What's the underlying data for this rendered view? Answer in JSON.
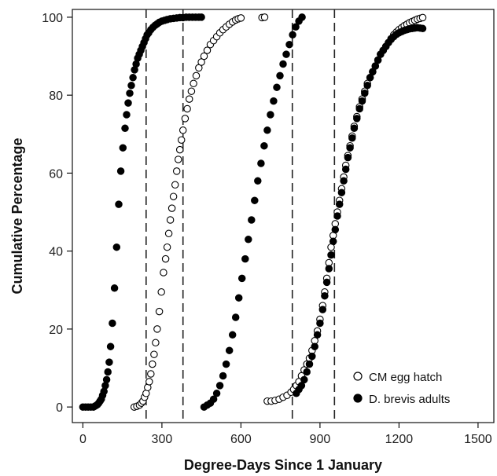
{
  "chart_data": {
    "type": "scatter",
    "xlabel": "Degree-Days Since 1 January",
    "ylabel": "Cumulative Percentage",
    "xlim": [
      -40,
      1560
    ],
    "ylim": [
      -4,
      102
    ],
    "xticks": [
      0,
      300,
      600,
      900,
      1200,
      1500
    ],
    "yticks": [
      0,
      20,
      40,
      60,
      80,
      100
    ],
    "grid": false,
    "legend_position": "bottom-right",
    "vlines": [
      240,
      380,
      795,
      955
    ],
    "series": [
      {
        "name": "CM egg hatch",
        "marker": "open-circle",
        "points": [
          [
            195,
            0
          ],
          [
            205,
            0.2
          ],
          [
            215,
            0.5
          ],
          [
            222,
            1
          ],
          [
            228,
            1.5
          ],
          [
            234,
            2.5
          ],
          [
            240,
            3.5
          ],
          [
            246,
            5
          ],
          [
            252,
            6.5
          ],
          [
            258,
            8.5
          ],
          [
            264,
            11
          ],
          [
            270,
            13.5
          ],
          [
            276,
            16.5
          ],
          [
            282,
            20
          ],
          [
            290,
            24.5
          ],
          [
            298,
            29.5
          ],
          [
            306,
            34.5
          ],
          [
            314,
            38
          ],
          [
            320,
            41
          ],
          [
            326,
            44.5
          ],
          [
            332,
            48
          ],
          [
            338,
            51
          ],
          [
            344,
            54
          ],
          [
            350,
            57
          ],
          [
            356,
            60.5
          ],
          [
            362,
            63.5
          ],
          [
            368,
            66
          ],
          [
            374,
            68.5
          ],
          [
            380,
            71
          ],
          [
            388,
            74
          ],
          [
            396,
            76.5
          ],
          [
            404,
            79
          ],
          [
            412,
            81
          ],
          [
            420,
            83
          ],
          [
            430,
            85
          ],
          [
            440,
            87
          ],
          [
            450,
            88.5
          ],
          [
            460,
            90
          ],
          [
            472,
            91.5
          ],
          [
            484,
            93
          ],
          [
            496,
            94
          ],
          [
            508,
            95
          ],
          [
            520,
            96
          ],
          [
            532,
            96.8
          ],
          [
            544,
            97.5
          ],
          [
            556,
            98.2
          ],
          [
            568,
            98.8
          ],
          [
            580,
            99.3
          ],
          [
            590,
            99.6
          ],
          [
            600,
            99.8
          ],
          [
            680,
            99.9
          ],
          [
            690,
            100
          ],
          [
            700,
            1.5
          ],
          [
            715,
            1.5
          ],
          [
            730,
            1.7
          ],
          [
            745,
            2
          ],
          [
            760,
            2.5
          ],
          [
            775,
            3
          ],
          [
            790,
            3.8
          ],
          [
            800,
            4.5
          ],
          [
            810,
            5.5
          ],
          [
            820,
            6.5
          ],
          [
            830,
            8
          ],
          [
            840,
            9.5
          ],
          [
            850,
            11
          ],
          [
            860,
            12.5
          ],
          [
            870,
            14.5
          ],
          [
            880,
            17
          ],
          [
            890,
            19.5
          ],
          [
            900,
            22.5
          ],
          [
            910,
            26
          ],
          [
            918,
            29.5
          ],
          [
            926,
            33
          ],
          [
            934,
            37
          ],
          [
            942,
            41
          ],
          [
            950,
            44
          ],
          [
            958,
            47
          ],
          [
            966,
            50
          ],
          [
            974,
            53
          ],
          [
            982,
            56
          ],
          [
            990,
            59
          ],
          [
            998,
            62
          ],
          [
            1006,
            64.5
          ],
          [
            1014,
            67
          ],
          [
            1022,
            69.5
          ],
          [
            1030,
            72
          ],
          [
            1040,
            74.5
          ],
          [
            1050,
            77
          ],
          [
            1060,
            79
          ],
          [
            1070,
            81
          ],
          [
            1080,
            83
          ],
          [
            1090,
            84.5
          ],
          [
            1100,
            86
          ],
          [
            1110,
            87.5
          ],
          [
            1120,
            89
          ],
          [
            1130,
            90.5
          ],
          [
            1140,
            91.5
          ],
          [
            1150,
            92.5
          ],
          [
            1160,
            93.5
          ],
          [
            1170,
            94.5
          ],
          [
            1180,
            95.5
          ],
          [
            1190,
            96.2
          ],
          [
            1200,
            96.8
          ],
          [
            1210,
            97.3
          ],
          [
            1220,
            97.8
          ],
          [
            1230,
            98.2
          ],
          [
            1240,
            98.6
          ],
          [
            1250,
            98.9
          ],
          [
            1260,
            99.2
          ],
          [
            1270,
            99.5
          ],
          [
            1280,
            99.7
          ],
          [
            1290,
            99.9
          ]
        ]
      },
      {
        "name": "D. brevis adults",
        "marker": "filled-circle",
        "points": [
          [
            0,
            0
          ],
          [
            10,
            0
          ],
          [
            20,
            0
          ],
          [
            30,
            0
          ],
          [
            40,
            0
          ],
          [
            45,
            0.2
          ],
          [
            50,
            0.4
          ],
          [
            55,
            0.6
          ],
          [
            60,
            1
          ],
          [
            65,
            1.5
          ],
          [
            70,
            2
          ],
          [
            75,
            3
          ],
          [
            80,
            4
          ],
          [
            85,
            5.5
          ],
          [
            90,
            7
          ],
          [
            95,
            9
          ],
          [
            100,
            11.5
          ],
          [
            105,
            15.5
          ],
          [
            112,
            21.5
          ],
          [
            120,
            30.5
          ],
          [
            128,
            41
          ],
          [
            136,
            52
          ],
          [
            144,
            60.5
          ],
          [
            152,
            66.5
          ],
          [
            160,
            71.5
          ],
          [
            166,
            75
          ],
          [
            172,
            78
          ],
          [
            178,
            80.5
          ],
          [
            184,
            82.5
          ],
          [
            190,
            84.5
          ],
          [
            196,
            86.5
          ],
          [
            202,
            88
          ],
          [
            208,
            89.5
          ],
          [
            214,
            90.5
          ],
          [
            220,
            91.5
          ],
          [
            226,
            92.5
          ],
          [
            232,
            93.5
          ],
          [
            238,
            94.5
          ],
          [
            244,
            95.5
          ],
          [
            250,
            96
          ],
          [
            258,
            96.8
          ],
          [
            266,
            97.4
          ],
          [
            274,
            97.9
          ],
          [
            282,
            98.3
          ],
          [
            290,
            98.7
          ],
          [
            300,
            99
          ],
          [
            310,
            99.2
          ],
          [
            320,
            99.4
          ],
          [
            332,
            99.6
          ],
          [
            344,
            99.7
          ],
          [
            356,
            99.8
          ],
          [
            368,
            99.9
          ],
          [
            380,
            99.9
          ],
          [
            392,
            100
          ],
          [
            404,
            100
          ],
          [
            416,
            100
          ],
          [
            428,
            100
          ],
          [
            440,
            100
          ],
          [
            450,
            100
          ],
          [
            460,
            0
          ],
          [
            472,
            0.5
          ],
          [
            484,
            1
          ],
          [
            496,
            2
          ],
          [
            508,
            3.5
          ],
          [
            520,
            5.5
          ],
          [
            532,
            8
          ],
          [
            544,
            11
          ],
          [
            556,
            14.5
          ],
          [
            568,
            18.5
          ],
          [
            580,
            23
          ],
          [
            592,
            28
          ],
          [
            604,
            33
          ],
          [
            616,
            38
          ],
          [
            628,
            43
          ],
          [
            640,
            48
          ],
          [
            652,
            53
          ],
          [
            664,
            58
          ],
          [
            676,
            62.5
          ],
          [
            688,
            67
          ],
          [
            700,
            71
          ],
          [
            712,
            75
          ],
          [
            724,
            78.5
          ],
          [
            736,
            82
          ],
          [
            748,
            85
          ],
          [
            760,
            88
          ],
          [
            772,
            90.5
          ],
          [
            784,
            93
          ],
          [
            796,
            95.5
          ],
          [
            808,
            97.5
          ],
          [
            820,
            99
          ],
          [
            832,
            100
          ],
          [
            810,
            3.5
          ],
          [
            820,
            4.5
          ],
          [
            830,
            5.5
          ],
          [
            840,
            7
          ],
          [
            850,
            9
          ],
          [
            860,
            11
          ],
          [
            870,
            13
          ],
          [
            880,
            15.5
          ],
          [
            890,
            18.5
          ],
          [
            900,
            21.5
          ],
          [
            910,
            25
          ],
          [
            918,
            28.5
          ],
          [
            926,
            32
          ],
          [
            934,
            35.5
          ],
          [
            942,
            39
          ],
          [
            950,
            42.5
          ],
          [
            958,
            45.5
          ],
          [
            966,
            49
          ],
          [
            974,
            52
          ],
          [
            982,
            55
          ],
          [
            990,
            58
          ],
          [
            998,
            61
          ],
          [
            1006,
            64
          ],
          [
            1014,
            66.5
          ],
          [
            1022,
            69
          ],
          [
            1030,
            71.5
          ],
          [
            1040,
            74
          ],
          [
            1050,
            76.5
          ],
          [
            1060,
            78.5
          ],
          [
            1070,
            80.5
          ],
          [
            1080,
            82.5
          ],
          [
            1090,
            84.5
          ],
          [
            1100,
            86
          ],
          [
            1110,
            87.5
          ],
          [
            1120,
            89
          ],
          [
            1130,
            90.5
          ],
          [
            1140,
            91.5
          ],
          [
            1150,
            92.5
          ],
          [
            1160,
            93.5
          ],
          [
            1170,
            94.3
          ],
          [
            1180,
            95
          ],
          [
            1190,
            95.6
          ],
          [
            1200,
            96
          ],
          [
            1210,
            96.3
          ],
          [
            1220,
            96.6
          ],
          [
            1230,
            96.8
          ],
          [
            1240,
            97
          ],
          [
            1250,
            97.1
          ],
          [
            1260,
            97.2
          ],
          [
            1270,
            97.3
          ],
          [
            1280,
            97.2
          ],
          [
            1290,
            97.1
          ]
        ]
      }
    ]
  }
}
